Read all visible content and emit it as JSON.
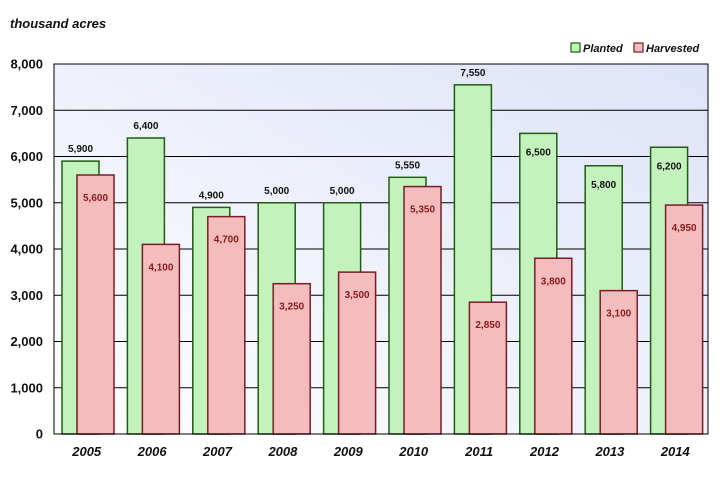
{
  "chart_data": {
    "type": "bar",
    "unit_label": "thousand acres",
    "categories": [
      "2005",
      "2006",
      "2007",
      "2008",
      "2009",
      "2010",
      "2011",
      "2012",
      "2013",
      "2014"
    ],
    "series": [
      {
        "name": "Planted",
        "values": [
          5900,
          6400,
          4900,
          5000,
          5000,
          5550,
          7550,
          6500,
          5800,
          6200
        ],
        "labels": [
          "5,900",
          "6,400",
          "4,900",
          "5,000",
          "5,000",
          "5,550",
          "7,550",
          "6,500",
          "5,800",
          "6,200"
        ],
        "fill": "#c4f2bc",
        "stroke": "#1f5c16"
      },
      {
        "name": "Harvested",
        "values": [
          5600,
          4100,
          4700,
          3250,
          3500,
          5350,
          2850,
          3800,
          3100,
          4950
        ],
        "labels": [
          "5,600",
          "4,100",
          "4,700",
          "3,250",
          "3,500",
          "5,350",
          "2,850",
          "3,800",
          "3,100",
          "4,950"
        ],
        "fill": "#f4bcbc",
        "stroke": "#7a1c28"
      }
    ],
    "ylim": [
      0,
      8000
    ],
    "yticks": [
      0,
      1000,
      2000,
      3000,
      4000,
      5000,
      6000,
      7000,
      8000
    ],
    "ytick_labels": [
      "0",
      "1,000",
      "2,000",
      "3,000",
      "4,000",
      "5,000",
      "6,000",
      "7,000",
      "8,000"
    ],
    "grid": true,
    "legend_position": "top-right",
    "plot_background": [
      "#ffffff",
      "#dde3f7"
    ]
  }
}
